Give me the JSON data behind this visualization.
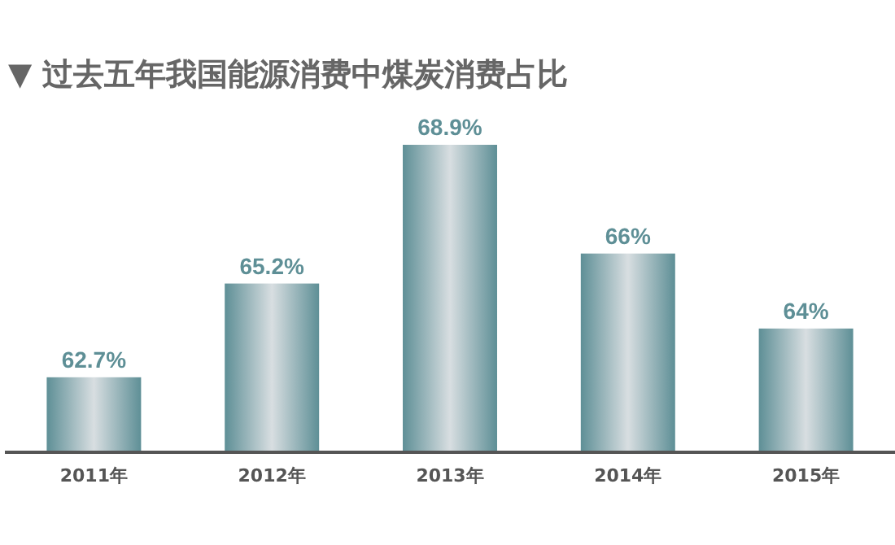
{
  "chart_data": {
    "type": "bar",
    "title": "▼ 过去五年我国能源消费中煤炭消费占比",
    "categories": [
      "2011年",
      "2012年",
      "2013年",
      "2014年",
      "2015年"
    ],
    "values": [
      62.7,
      65.2,
      68.9,
      66,
      64
    ],
    "value_labels": [
      "62.7%",
      "65.2%",
      "68.9%",
      "66%",
      "64%"
    ],
    "color": "#5e8f96",
    "ylim": [
      60.7,
      68.9
    ],
    "tick_labels": "x",
    "grid": false
  }
}
